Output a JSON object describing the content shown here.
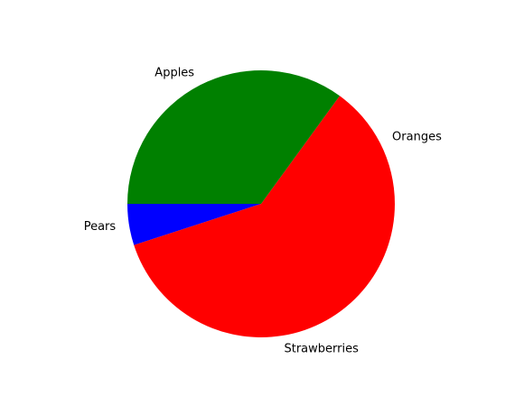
{
  "chart_data": {
    "type": "pie",
    "title": "",
    "start_angle_deg": 0,
    "direction": "counterclockwise",
    "slices": [
      {
        "label": "Oranges",
        "value": 15,
        "color": "#ff0000"
      },
      {
        "label": "Apples",
        "value": 35,
        "color": "#008000"
      },
      {
        "label": "Pears",
        "value": 5,
        "color": "#0000ff"
      },
      {
        "label": "Strawberries",
        "value": 45,
        "color": "#ff0000"
      }
    ]
  }
}
